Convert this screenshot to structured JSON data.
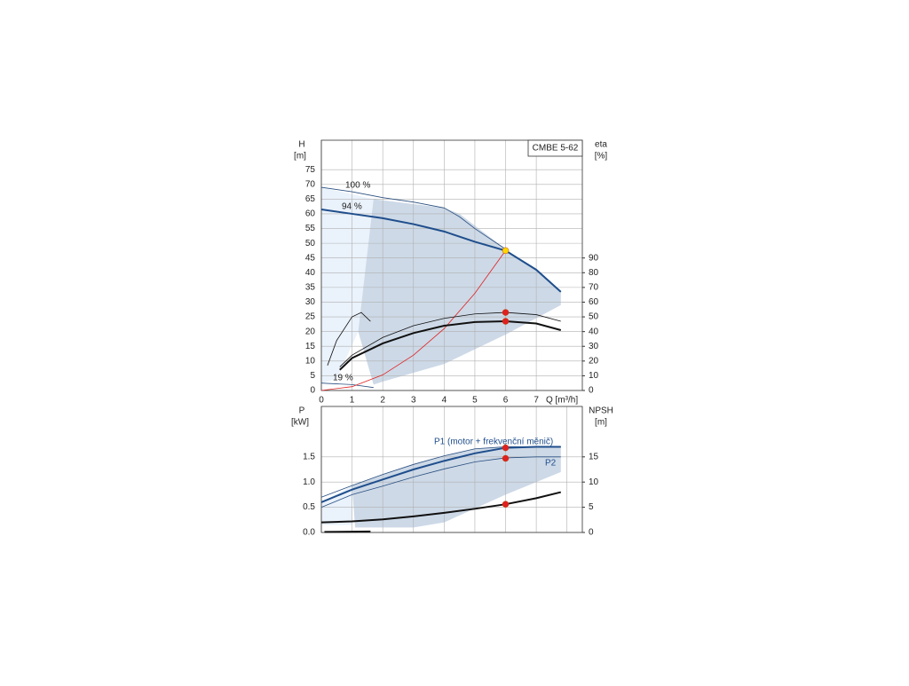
{
  "chart_data": [
    {
      "type": "line",
      "label_box": "CMBE 5-62",
      "ylabel": "H",
      "yunit": "[m]",
      "y2label": "eta",
      "y2unit": "[%]",
      "xlabel": "Q [m³/h]",
      "xlim": [
        0,
        8.5
      ],
      "xticks": [
        0,
        1,
        2,
        3,
        4,
        5,
        6,
        7
      ],
      "show_x_tick_labels": true,
      "ylim": [
        0,
        85
      ],
      "yticks": [
        0,
        5,
        10,
        15,
        20,
        25,
        30,
        35,
        40,
        45,
        50,
        55,
        60,
        65,
        70,
        75
      ],
      "y2lim": [
        0,
        170
      ],
      "y2ticks": [
        0,
        10,
        20,
        30,
        40,
        50,
        60,
        70,
        80,
        90
      ],
      "grid": true,
      "regions": [
        {
          "color": "#eaf2fb",
          "x": [
            0,
            1.7,
            1.2,
            0.5,
            0
          ],
          "y": [
            69,
            65,
            20,
            4,
            2.5
          ]
        },
        {
          "color": "#cdd9e7",
          "x": [
            1.7,
            4,
            4.5,
            5,
            6,
            7,
            7.8,
            7.8,
            6,
            4,
            2,
            1.7,
            1.2
          ],
          "y": [
            65,
            62,
            60,
            56,
            48,
            41,
            33.5,
            29,
            19,
            9,
            3,
            2,
            20
          ]
        }
      ],
      "series": [
        {
          "color": "#2a4f80",
          "width": 0.8,
          "x": [
            0,
            1,
            2,
            3,
            4,
            4.5,
            5,
            6
          ],
          "values": [
            69,
            67.5,
            65.5,
            64,
            62,
            59,
            55,
            48
          ]
        },
        {
          "color": "#1f4e8c",
          "width": 2,
          "x": [
            0,
            1,
            2,
            3,
            4,
            5,
            6,
            7,
            7.8
          ],
          "values": [
            61.5,
            60,
            58.5,
            56.5,
            54,
            50.5,
            47.5,
            41,
            33.5
          ]
        },
        {
          "color": "#2a4f80",
          "width": 0.8,
          "x": [
            0,
            1,
            1.7
          ],
          "values": [
            2.5,
            2,
            1
          ]
        },
        {
          "color": "#e02020",
          "width": 0.8,
          "x": [
            0,
            1,
            2,
            3,
            4,
            5,
            6
          ],
          "values": [
            0,
            1.3,
            5.3,
            12,
            21,
            33,
            47.5
          ]
        },
        {
          "color": "#111111",
          "width": 0.8,
          "axis": "y2",
          "x": [
            0.6,
            1,
            2,
            3,
            4,
            5,
            6,
            7,
            7.8
          ],
          "values": [
            16,
            24,
            36,
            44,
            49,
            52,
            53,
            51.5,
            47
          ]
        },
        {
          "color": "#111111",
          "width": 2,
          "axis": "y2",
          "x": [
            0.6,
            1,
            2,
            3,
            4,
            5,
            6,
            7,
            7.8
          ],
          "values": [
            14,
            22,
            32,
            39,
            44,
            46.5,
            47,
            45.5,
            41
          ]
        },
        {
          "color": "#111111",
          "width": 0.8,
          "axis": "y2",
          "x": [
            0.2,
            0.5,
            1,
            1.3,
            1.6
          ],
          "values": [
            17,
            34,
            50,
            53,
            47
          ]
        }
      ],
      "points": [
        {
          "color": "#ffd700",
          "x": 6,
          "y": 47.5
        },
        {
          "color": "#e02020",
          "x": 6,
          "y": 53,
          "axis": "y2"
        },
        {
          "color": "#e02020",
          "x": 6,
          "y": 47,
          "axis": "y2"
        }
      ],
      "annotations": [
        "100 %",
        "94 %",
        "19 %"
      ]
    },
    {
      "type": "line",
      "ylabel": "P",
      "yunit": "[kW]",
      "y2label": "NPSH",
      "y2unit": "[m]",
      "xlim": [
        0,
        8.5
      ],
      "xticks": [
        0,
        1,
        2,
        3,
        4,
        5,
        6,
        7,
        8
      ],
      "show_x_tick_labels": false,
      "ylim": [
        0,
        2.5
      ],
      "yticks": [
        {
          "value": 0,
          "label": "0.0"
        },
        0.5,
        {
          "value": 1,
          "label": "1.0"
        },
        1.5
      ],
      "y2lim": [
        0,
        25
      ],
      "y2ticks": [
        0,
        5,
        10,
        15
      ],
      "grid": true,
      "regions": [
        {
          "color": "#eaf2fb",
          "x": [
            0,
            1,
            1,
            0
          ],
          "y": [
            0.6,
            0.93,
            0.15,
            0.15
          ]
        },
        {
          "color": "#cdd9e7",
          "x": [
            1,
            2,
            3,
            4,
            5,
            6,
            7.8,
            7.8,
            6,
            4,
            3,
            1.1
          ],
          "y": [
            0.93,
            1.15,
            1.35,
            1.52,
            1.66,
            1.7,
            1.7,
            1.2,
            0.75,
            0.2,
            0.1,
            0.1
          ]
        }
      ],
      "series": [
        {
          "color": "#2a4f80",
          "width": 0.8,
          "x": [
            0,
            1,
            2,
            3,
            4,
            5,
            6,
            7.8
          ],
          "values": [
            0.7,
            0.93,
            1.15,
            1.35,
            1.52,
            1.66,
            1.7,
            1.7
          ]
        },
        {
          "color": "#1f4e8c",
          "width": 2,
          "x": [
            0,
            1,
            2,
            3,
            4,
            5,
            6,
            7,
            7.8
          ],
          "values": [
            0.6,
            0.85,
            1.05,
            1.25,
            1.42,
            1.57,
            1.68,
            1.7,
            1.7
          ]
        },
        {
          "color": "#2a4f80",
          "width": 0.8,
          "x": [
            0,
            1,
            2,
            3,
            4,
            5,
            6,
            7,
            7.8
          ],
          "values": [
            0.5,
            0.75,
            0.92,
            1.1,
            1.26,
            1.4,
            1.48,
            1.5,
            1.5
          ]
        },
        {
          "color": "#111111",
          "width": 2,
          "axis": "y2",
          "x": [
            0,
            1,
            2,
            3,
            4,
            5,
            6,
            7,
            7.8
          ],
          "values": [
            2,
            2.2,
            2.6,
            3.2,
            3.9,
            4.7,
            5.6,
            6.8,
            8
          ]
        },
        {
          "color": "#111111",
          "width": 2,
          "x": [
            0.1,
            1.6
          ],
          "values": [
            0.01,
            0.02
          ]
        }
      ],
      "points": [
        {
          "color": "#e02020",
          "x": 6,
          "y": 1.68
        },
        {
          "color": "#e02020",
          "x": 6,
          "y": 1.47
        },
        {
          "color": "#e02020",
          "x": 6,
          "y": 5.6,
          "axis": "y2"
        }
      ],
      "annotations": [
        "P1 (motor + frekvenční měnič)",
        "P2"
      ]
    }
  ]
}
